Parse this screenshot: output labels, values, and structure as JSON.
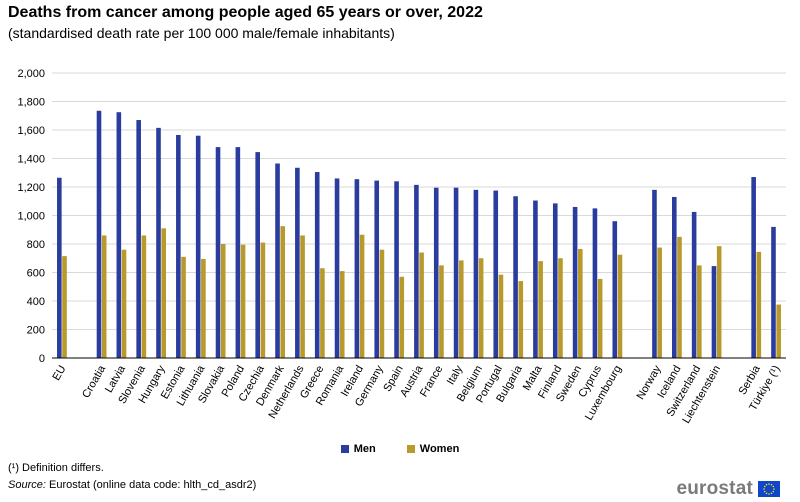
{
  "header": {
    "title": "Deaths from cancer among people aged 65 years or over, 2022",
    "subtitle": "(standardised death rate per 100 000 male/female inhabitants)"
  },
  "footer": {
    "footnote": "(¹) Definition differs.",
    "source_label": "Source:",
    "source_text": "Eurostat (online data code: hlth_cd_asdr2)",
    "brand": "eurostat"
  },
  "colors": {
    "men": "#2a3d9f",
    "women": "#b89a2c",
    "grid": "#d9d9d9"
  },
  "chart_data": {
    "type": "bar",
    "title": "Deaths from cancer among people aged 65 years or over, 2022",
    "ylim": [
      0,
      2000
    ],
    "yticks": [
      0,
      200,
      400,
      600,
      800,
      1000,
      1200,
      1400,
      1600,
      1800,
      2000
    ],
    "ytick_labels": [
      "0",
      "200",
      "400",
      "600",
      "800",
      "1,000",
      "1,200",
      "1,400",
      "1,600",
      "1,800",
      "2,000"
    ],
    "grid": true,
    "legend_position": "bottom-center",
    "slots": [
      "EU",
      "",
      "Croatia",
      "Latvia",
      "Slovenia",
      "Hungary",
      "Estonia",
      "Lithuania",
      "Slovakia",
      "Poland",
      "Czechia",
      "Denmark",
      "Netherlands",
      "Greece",
      "Romania",
      "Ireland",
      "Germany",
      "Spain",
      "Austria",
      "France",
      "Italy",
      "Belgium",
      "Portugal",
      "Bulgaria",
      "Malta",
      "Finland",
      "Sweden",
      "Cyprus",
      "Luxembourg",
      "",
      "Norway",
      "Iceland",
      "Switzerland",
      "Liechtenstein",
      "",
      "Serbia",
      "Türkiye (¹)"
    ],
    "series": [
      {
        "name": "Men",
        "values": [
          1265,
          null,
          1735,
          1725,
          1670,
          1615,
          1565,
          1560,
          1480,
          1480,
          1445,
          1365,
          1335,
          1305,
          1260,
          1255,
          1245,
          1240,
          1215,
          1195,
          1195,
          1180,
          1175,
          1135,
          1105,
          1085,
          1060,
          1050,
          960,
          null,
          1180,
          1130,
          1025,
          645,
          null,
          1270,
          920
        ]
      },
      {
        "name": "Women",
        "values": [
          715,
          null,
          860,
          760,
          860,
          910,
          710,
          695,
          800,
          795,
          810,
          925,
          860,
          630,
          610,
          865,
          760,
          570,
          740,
          650,
          685,
          700,
          585,
          540,
          680,
          700,
          765,
          555,
          725,
          null,
          775,
          850,
          650,
          785,
          null,
          745,
          375
        ]
      }
    ]
  }
}
